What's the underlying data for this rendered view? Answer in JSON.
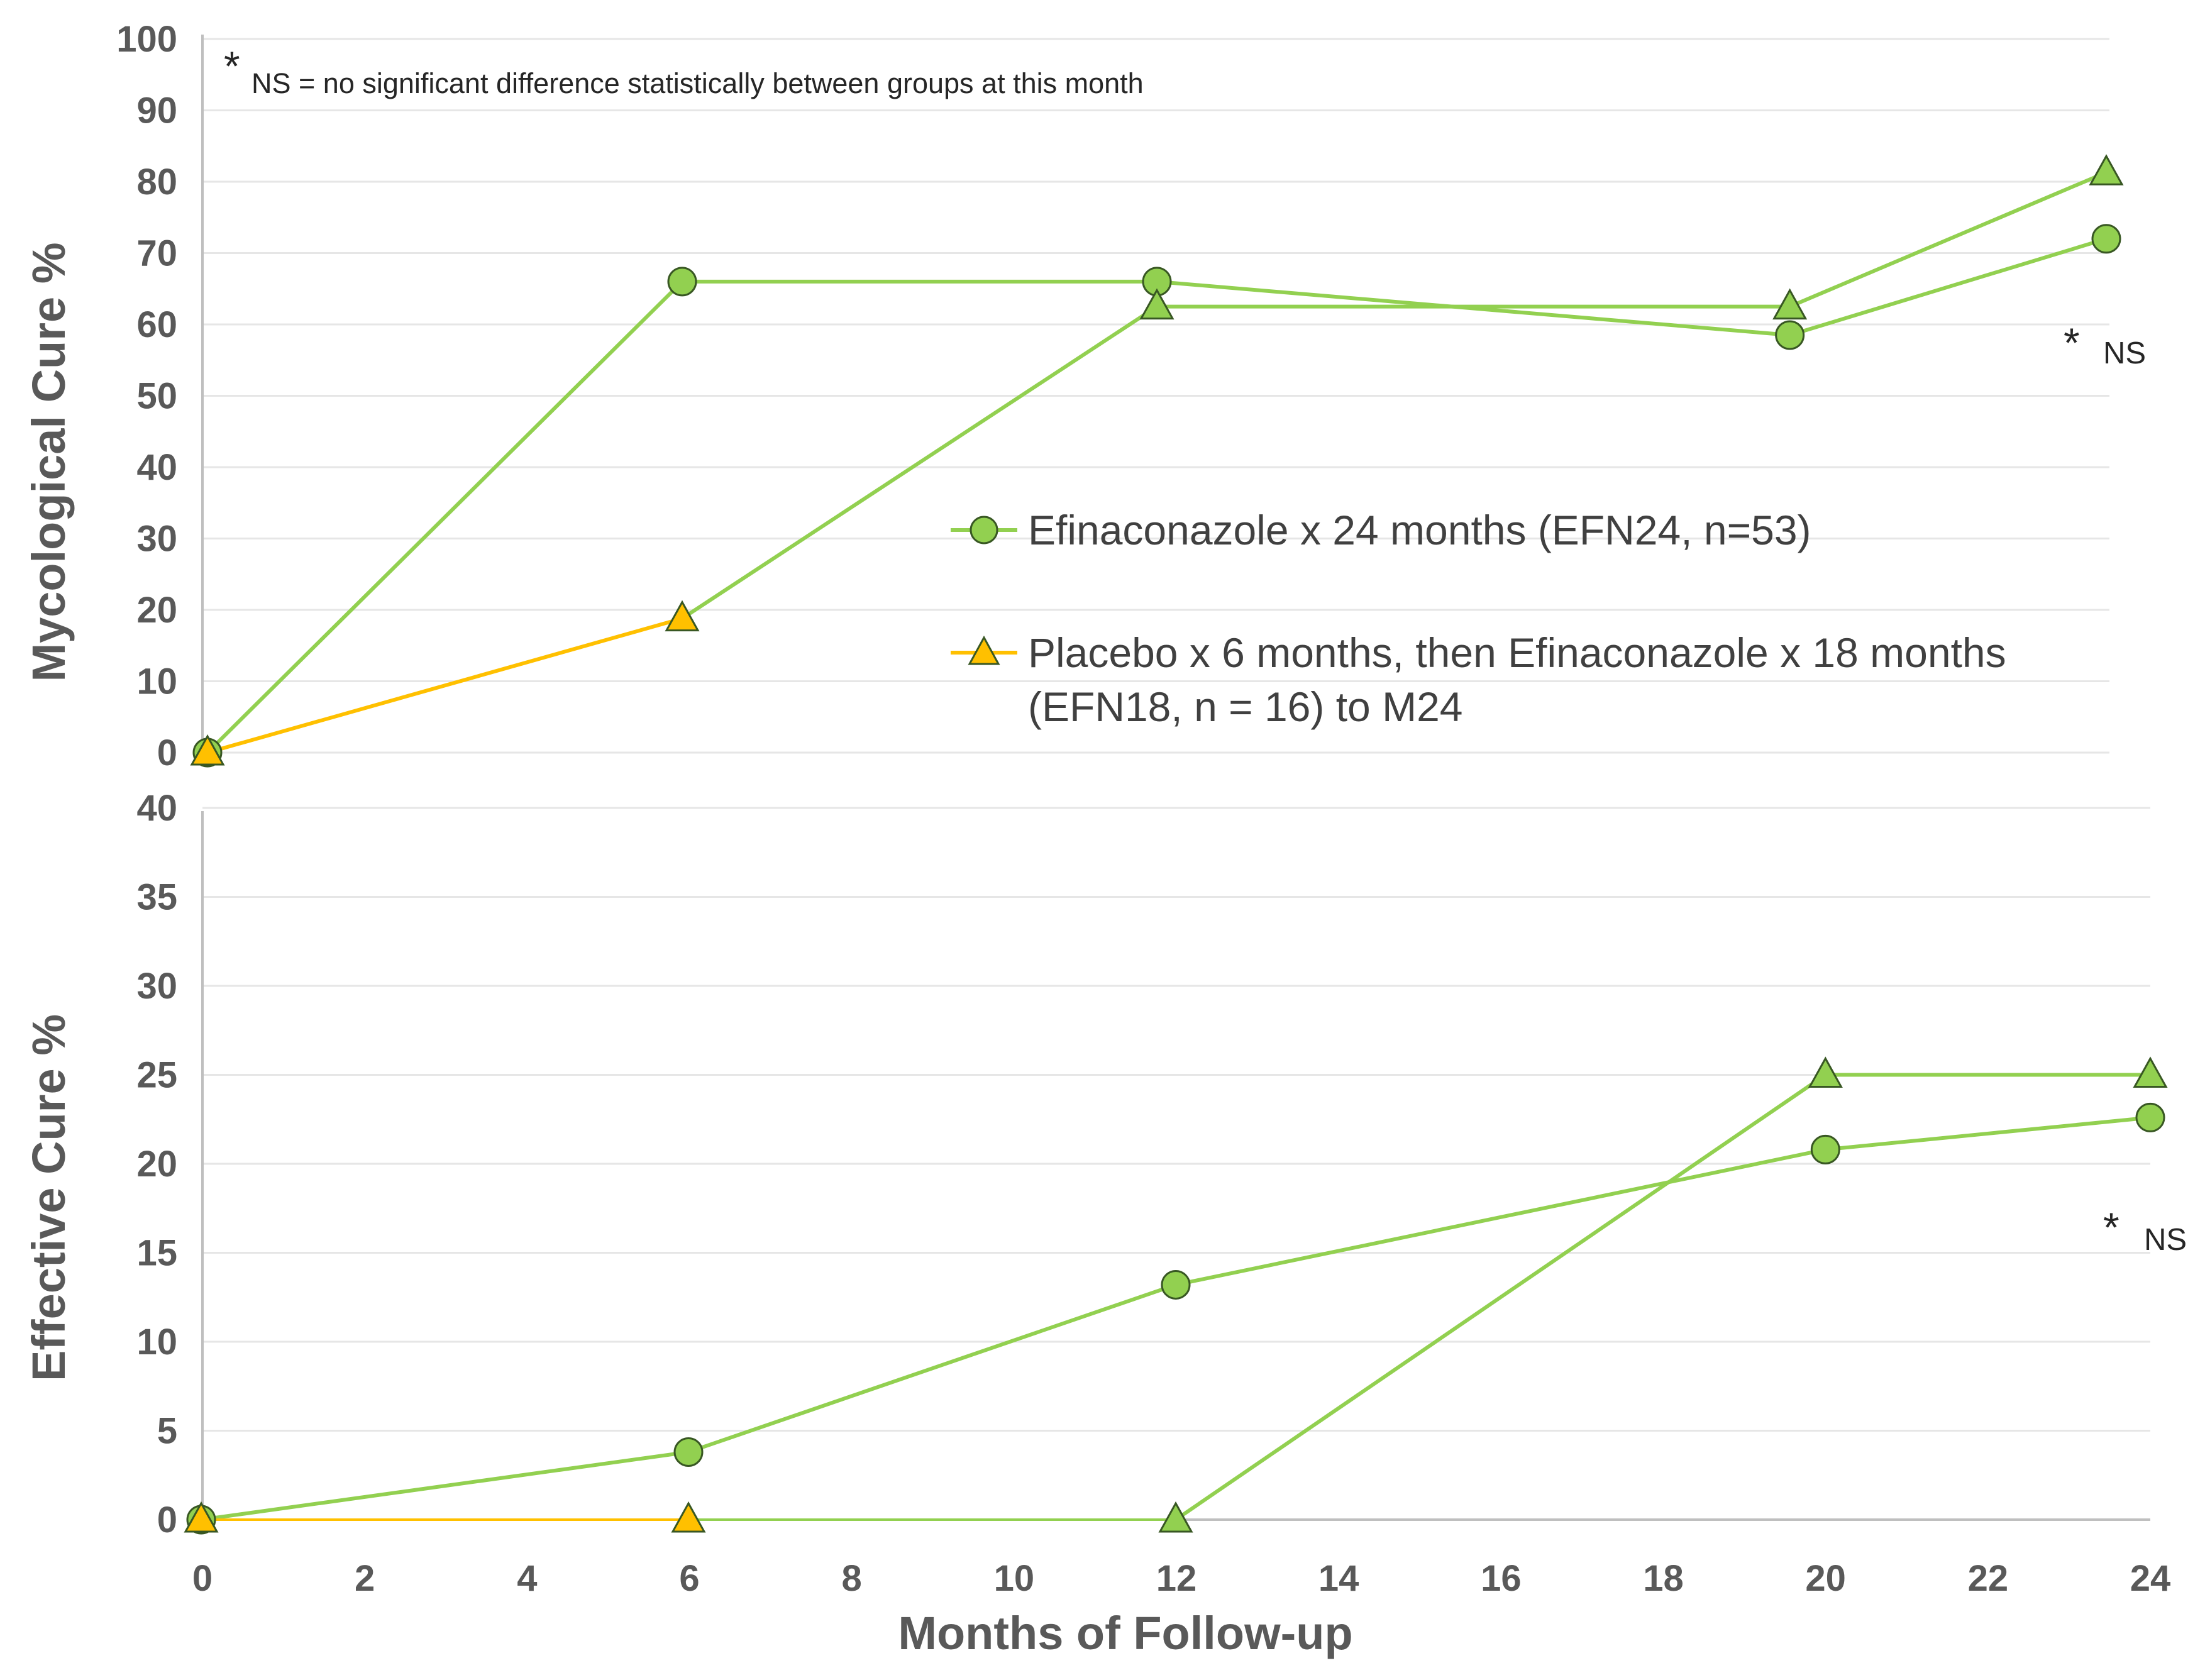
{
  "chart_data": {
    "type": "line",
    "colors": {
      "efn24_line": "#92D050",
      "efn24_marker_fill": "#92D050",
      "efn18_line_placebo": "#FFC000",
      "efn18_line_active": "#92D050",
      "efn18_marker_placebo": "#FFC000",
      "efn18_marker_active": "#92D050",
      "marker_stroke": "#385723",
      "gridline": "#e6e6e6",
      "axis": "#bfbfbf",
      "text": "#595959"
    },
    "footnote": {
      "symbol": "*",
      "text": "NS = no significant difference statistically between groups at this month"
    },
    "legend": {
      "placement": "center-right of top panel",
      "entries": [
        {
          "series": "efn24",
          "marker": "circle",
          "lines": [
            "Efinaconazole x 24 months (EFN24, n=53)"
          ]
        },
        {
          "series": "efn18",
          "marker": "triangle",
          "lines": [
            "Placebo x 6 months, then Efinaconazole x 18 months",
            "(EFN18, n = 16) to M24"
          ]
        }
      ]
    },
    "xlabel": "Months of Follow-up",
    "xlim": [
      0,
      24
    ],
    "xticks": [
      0,
      2,
      4,
      6,
      8,
      10,
      12,
      14,
      16,
      18,
      20,
      22,
      24
    ],
    "panels": [
      {
        "id": "mycological",
        "ylabel": "Mycological Cure %",
        "ylim": [
          0,
          100
        ],
        "yticks": [
          0,
          10,
          20,
          30,
          40,
          50,
          60,
          70,
          80,
          90,
          100
        ],
        "series": [
          {
            "id": "efn24",
            "name": "Efinaconazole x 24 months (EFN24, n=53)",
            "marker": "circle",
            "x": [
              0,
              6,
              12,
              20,
              24
            ],
            "values": [
              0,
              66,
              66,
              58.5,
              72
            ]
          },
          {
            "id": "efn18",
            "name": "Placebo x 6 months, then Efinaconazole x 18 months (EFN18, n = 16) to M24",
            "marker": "triangle",
            "x": [
              0,
              6,
              12,
              20,
              24
            ],
            "values": [
              0,
              18.8,
              62.5,
              62.5,
              81.3
            ]
          }
        ],
        "annotations": [
          {
            "star": "*",
            "label": "NS",
            "x": 24
          }
        ]
      },
      {
        "id": "effective",
        "ylabel": "Effective Cure %",
        "ylim": [
          0,
          40
        ],
        "yticks": [
          0,
          5,
          10,
          15,
          20,
          25,
          30,
          35,
          40
        ],
        "series": [
          {
            "id": "efn24",
            "name": "Efinaconazole x 24 months (EFN24, n=53)",
            "marker": "circle",
            "x": [
              0,
              6,
              12,
              20,
              24
            ],
            "values": [
              0,
              3.8,
              13.2,
              20.8,
              22.6
            ]
          },
          {
            "id": "efn18",
            "name": "Placebo x 6 months, then Efinaconazole x 18 months (EFN18, n = 16) to M24",
            "marker": "triangle",
            "x": [
              0,
              6,
              12,
              20,
              24
            ],
            "values": [
              0,
              0,
              0,
              25,
              25
            ]
          }
        ],
        "annotations": [
          {
            "star": "*",
            "label": "NS",
            "x": 24
          }
        ]
      }
    ]
  }
}
